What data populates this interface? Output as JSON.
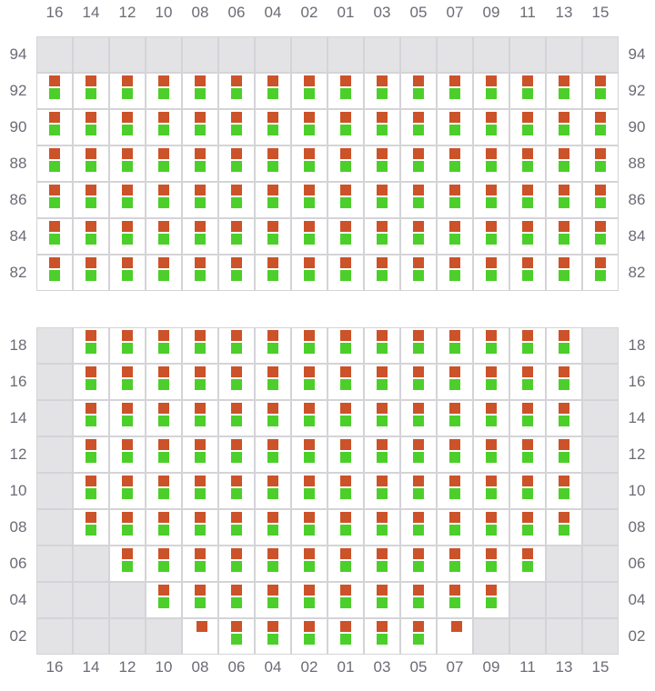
{
  "columns": [
    "16",
    "14",
    "12",
    "10",
    "08",
    "06",
    "04",
    "02",
    "01",
    "03",
    "05",
    "07",
    "09",
    "11",
    "13",
    "15"
  ],
  "colors": {
    "orange": "#cc5229",
    "green": "#4ccf2a",
    "unavailable": "#e3e3e5"
  },
  "legend_codes": {
    "G": "unavailable",
    "B": "orange+green",
    "O": "orange only"
  },
  "sections": [
    {
      "rows": [
        {
          "label": "94",
          "cells": "GGGGGGGGGGGGGGGG"
        },
        {
          "label": "92",
          "cells": "BBBBBBBBBBBBBBBB"
        },
        {
          "label": "90",
          "cells": "BBBBBBBBBBBBBBBB"
        },
        {
          "label": "88",
          "cells": "BBBBBBBBBBBBBBBB"
        },
        {
          "label": "86",
          "cells": "BBBBBBBBBBBBBBBB"
        },
        {
          "label": "84",
          "cells": "BBBBBBBBBBBBBBBB"
        },
        {
          "label": "82",
          "cells": "BBBBBBBBBBBBBBBB"
        }
      ]
    },
    {
      "rows": [
        {
          "label": "18",
          "cells": "GBBBBBBBBBBBBBBG"
        },
        {
          "label": "16",
          "cells": "GBBBBBBBBBBBBBBG"
        },
        {
          "label": "14",
          "cells": "GBBBBBBBBBBBBBBG"
        },
        {
          "label": "12",
          "cells": "GBBBBBBBBBBBBBBG"
        },
        {
          "label": "10",
          "cells": "GBBBBBBBBBBBBBBG"
        },
        {
          "label": "08",
          "cells": "GBBBBBBBBBBBBBBG"
        },
        {
          "label": "06",
          "cells": "GGBBBBBBBBBBBBGG"
        },
        {
          "label": "04",
          "cells": "GGGBBBBBBBBBBGGG"
        },
        {
          "label": "02",
          "cells": "GGGGOBBBBBBOGGGG"
        }
      ]
    }
  ]
}
